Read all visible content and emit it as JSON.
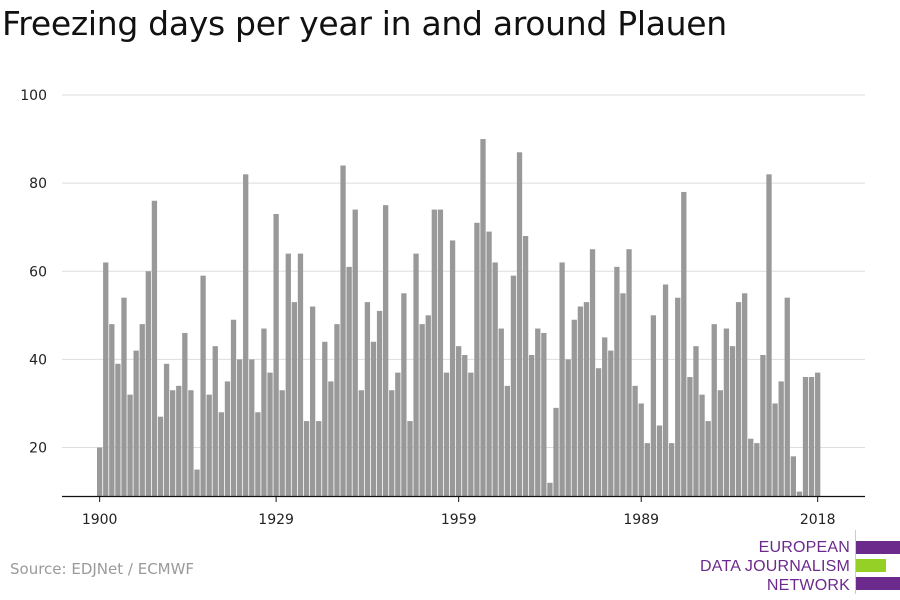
{
  "chart_data": {
    "type": "bar",
    "title": "Freezing days per year in and around Plauen",
    "xlabel": "",
    "ylabel": "",
    "x_tick_labels": [
      "1900",
      "1929",
      "1959",
      "1989",
      "2018"
    ],
    "y_tick_labels": [
      "20",
      "40",
      "60",
      "80",
      "100"
    ],
    "ylim": [
      9,
      100
    ],
    "grid": true,
    "bar_color": "#999999",
    "categories": [
      1900,
      1901,
      1902,
      1903,
      1904,
      1905,
      1906,
      1907,
      1908,
      1909,
      1910,
      1911,
      1912,
      1913,
      1914,
      1915,
      1916,
      1917,
      1918,
      1919,
      1920,
      1921,
      1922,
      1923,
      1924,
      1925,
      1926,
      1927,
      1928,
      1929,
      1930,
      1931,
      1932,
      1933,
      1934,
      1935,
      1936,
      1937,
      1938,
      1939,
      1940,
      1941,
      1942,
      1943,
      1944,
      1945,
      1946,
      1947,
      1948,
      1949,
      1950,
      1951,
      1952,
      1953,
      1954,
      1955,
      1956,
      1957,
      1958,
      1959,
      1960,
      1961,
      1962,
      1963,
      1964,
      1965,
      1966,
      1967,
      1968,
      1969,
      1970,
      1971,
      1972,
      1973,
      1974,
      1975,
      1976,
      1977,
      1978,
      1979,
      1980,
      1981,
      1982,
      1983,
      1984,
      1985,
      1986,
      1987,
      1988,
      1989,
      1990,
      1991,
      1992,
      1993,
      1994,
      1995,
      1996,
      1997,
      1998,
      1999,
      2000,
      2001,
      2002,
      2003,
      2004,
      2005,
      2006,
      2007,
      2008,
      2009,
      2010,
      2011,
      2012,
      2013,
      2014,
      2015,
      2016,
      2017,
      2018
    ],
    "values": [
      20,
      62,
      48,
      39,
      54,
      32,
      42,
      48,
      60,
      76,
      27,
      39,
      33,
      34,
      46,
      33,
      15,
      59,
      32,
      43,
      28,
      35,
      49,
      40,
      82,
      40,
      28,
      47,
      37,
      73,
      33,
      64,
      53,
      64,
      26,
      52,
      26,
      44,
      35,
      48,
      84,
      61,
      74,
      33,
      53,
      44,
      51,
      75,
      33,
      37,
      55,
      26,
      64,
      48,
      50,
      74,
      74,
      37,
      67,
      43,
      41,
      37,
      71,
      90,
      69,
      62,
      47,
      34,
      59,
      87,
      68,
      41,
      47,
      46,
      12,
      29,
      62,
      40,
      49,
      52,
      53,
      65,
      38,
      45,
      42,
      61,
      55,
      65,
      34,
      30,
      21,
      50,
      25,
      57,
      21,
      54,
      78,
      36,
      43,
      32,
      26,
      48,
      33,
      47,
      43,
      53,
      55,
      22,
      21,
      41,
      82,
      30,
      35,
      54,
      18,
      10,
      36,
      36,
      37
    ]
  },
  "source": "Source: EDJNet / ECMWF",
  "logo": {
    "lines": [
      "EUROPEAN",
      "DATA JOURNALISM",
      "NETWORK"
    ],
    "colors": {
      "text": "#6b2a8c",
      "bar_purple": "#6b2a8c",
      "bar_green": "#95d027"
    }
  }
}
